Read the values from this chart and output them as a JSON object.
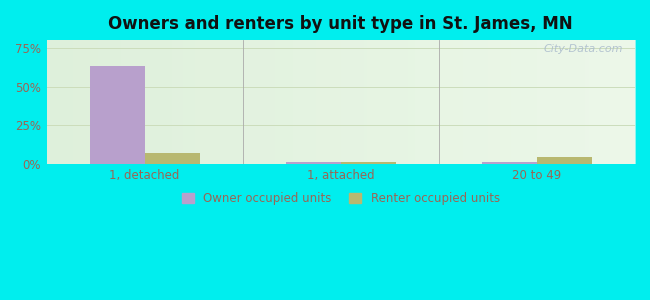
{
  "title": "Owners and renters by unit type in St. James, MN",
  "categories": [
    "1, detached",
    "1, attached",
    "20 to 49"
  ],
  "owner_values": [
    63.0,
    1.5,
    1.5
  ],
  "renter_values": [
    7.0,
    1.5,
    4.5
  ],
  "owner_color": "#b8a0cc",
  "renter_color": "#b8b870",
  "ylim": [
    0,
    80
  ],
  "yticks": [
    0,
    25,
    50,
    75
  ],
  "yticklabels": [
    "0%",
    "25%",
    "50%",
    "75%"
  ],
  "outer_bg": "#00eeee",
  "watermark": "City-Data.com",
  "legend_labels": [
    "Owner occupied units",
    "Renter occupied units"
  ],
  "bar_width": 0.28,
  "tick_color": "#996655",
  "grid_color": "#ccddbb"
}
